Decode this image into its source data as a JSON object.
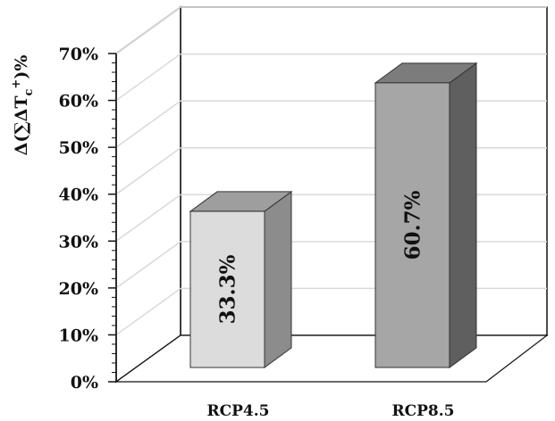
{
  "chart_data": {
    "type": "bar",
    "title": "",
    "xlabel": "",
    "ylabel": {
      "prefix": "Δ(∑ΔT",
      "sub": "c",
      "sup": "+",
      "suffix": ")%"
    },
    "categories": [
      "RCP4.5",
      "RCP8.5"
    ],
    "values": [
      33.3,
      60.7
    ],
    "data_labels": [
      "33.3%",
      "60.7%"
    ],
    "ylim": [
      0,
      70
    ],
    "y_ticks": [
      0,
      10,
      20,
      30,
      40,
      50,
      60,
      70
    ],
    "y_tick_labels": [
      "0%",
      "10%",
      "20%",
      "30%",
      "40%",
      "50%",
      "60%",
      "70%"
    ],
    "grid": true,
    "legend": "none",
    "style": "3d-column",
    "colors": {
      "bars": [
        "#dcdcdc",
        "#a6a6a6"
      ],
      "bar_tops": [
        "#9e9e9e",
        "#7c7c7c"
      ],
      "bar_sides": [
        "#8c8c8c",
        "#5f5f5f"
      ],
      "bar_stroke": "#333333",
      "grid": "#d9d9d9",
      "axis": "#111111"
    }
  }
}
